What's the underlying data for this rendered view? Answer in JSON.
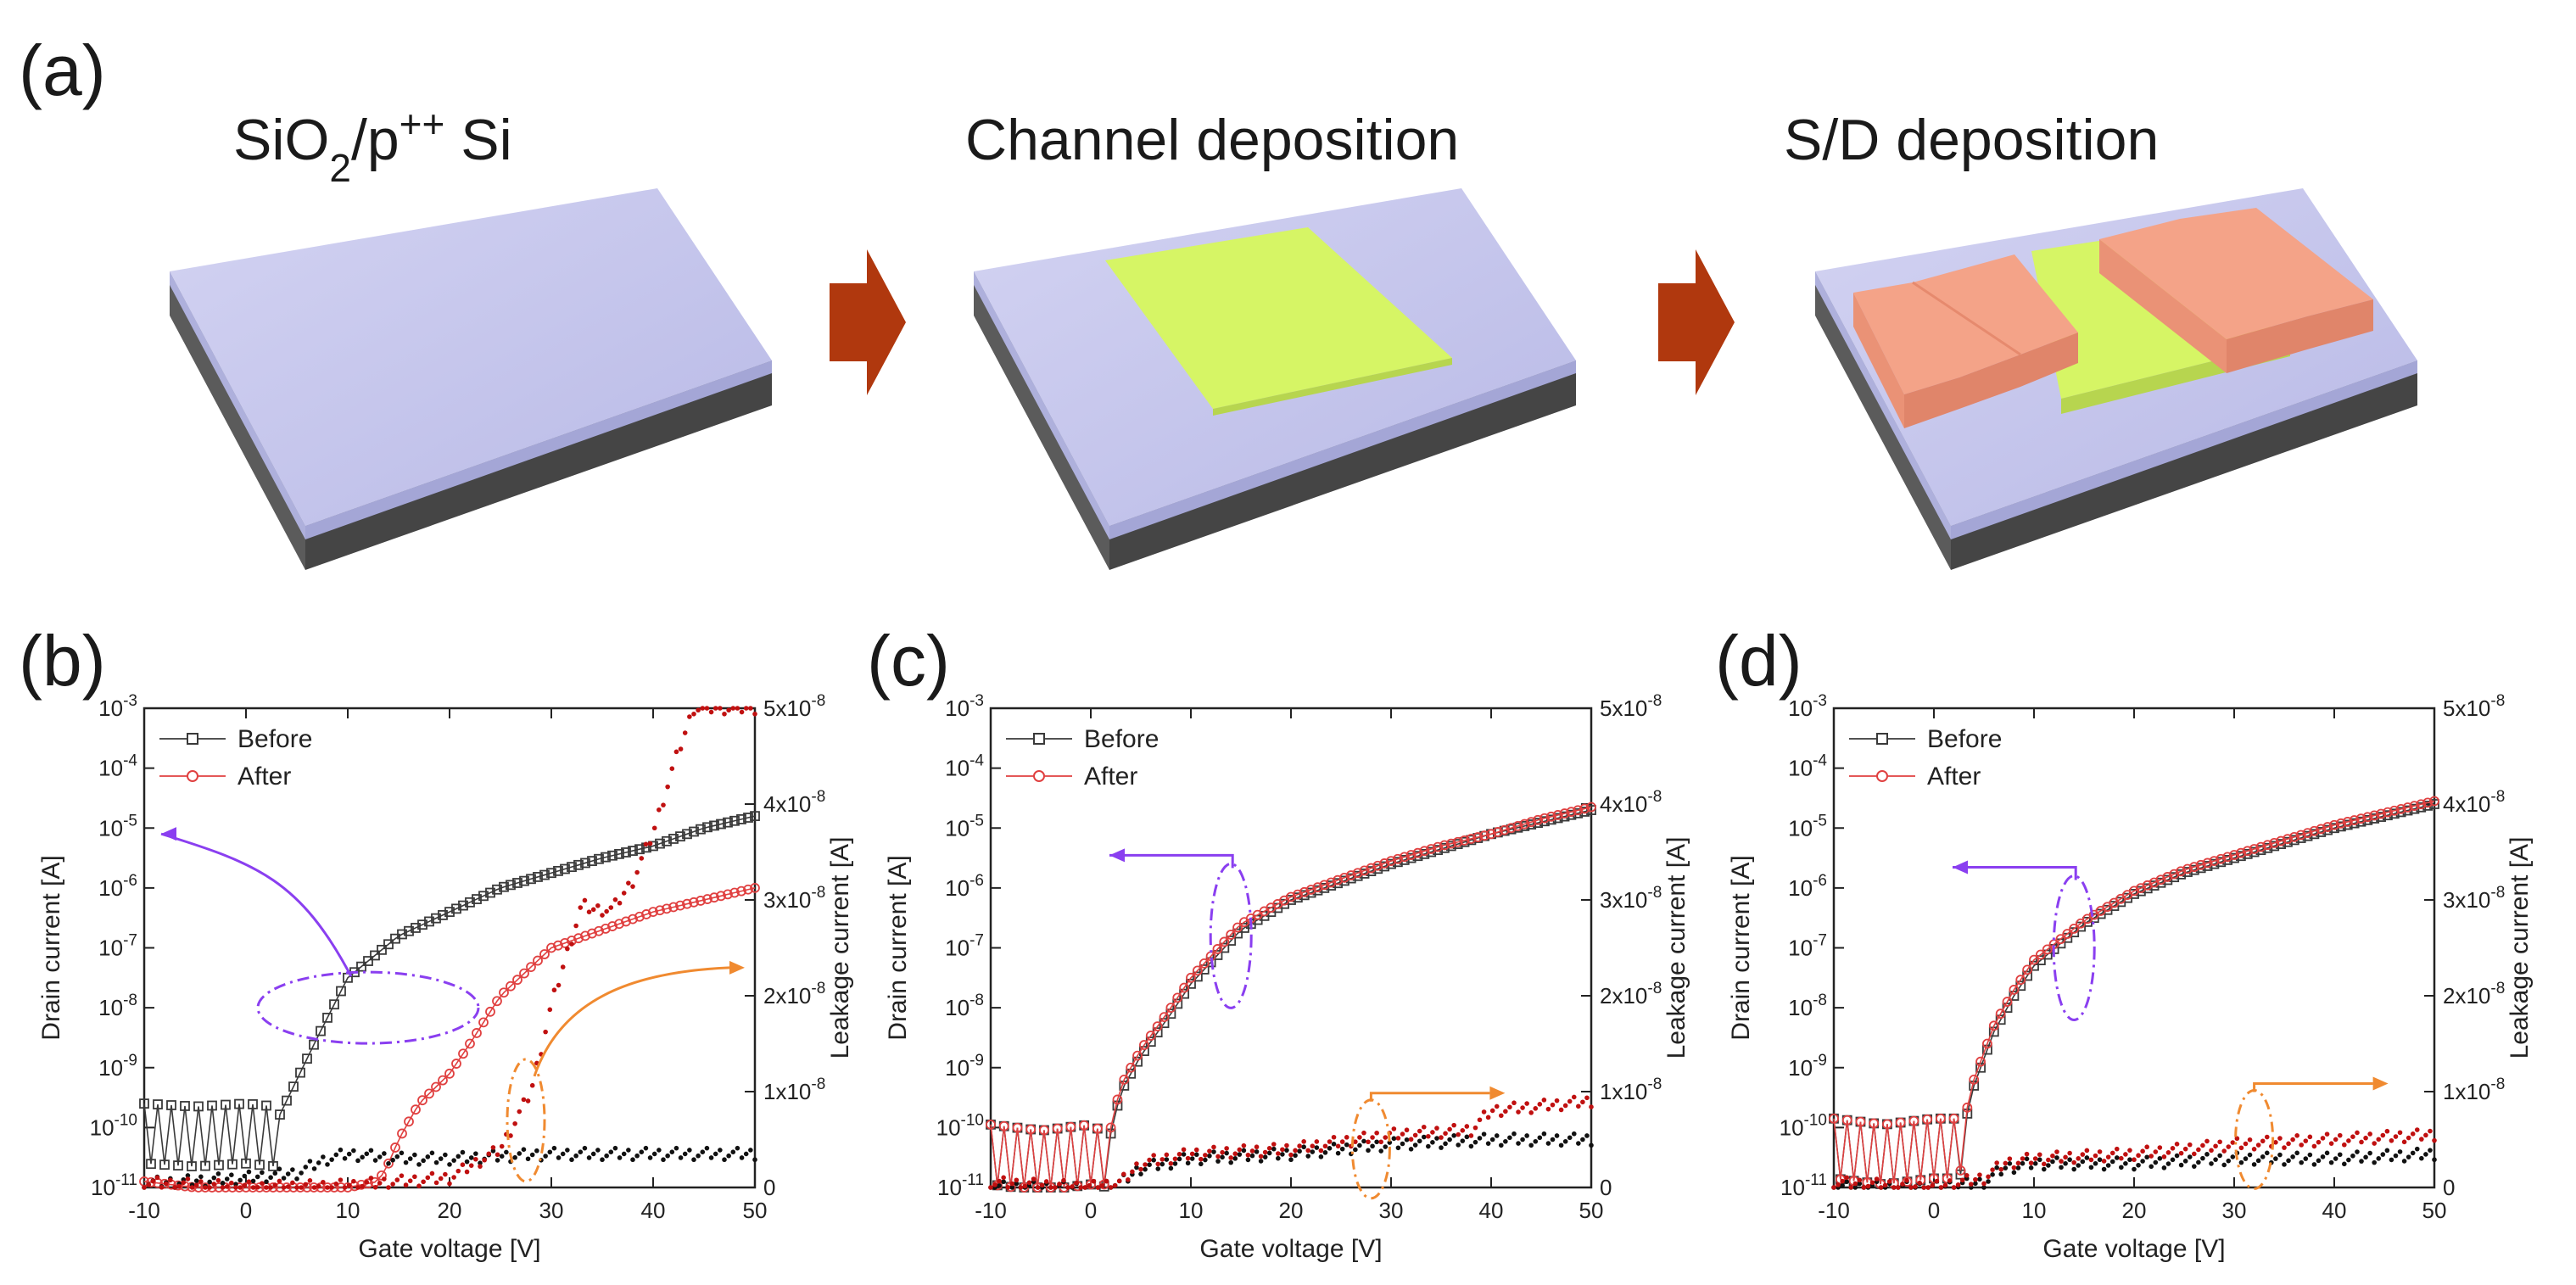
{
  "figure": {
    "panel_a": {
      "label": "(a)",
      "steps": [
        {
          "title_parts": [
            "SiO",
            "2",
            "/p",
            "++",
            " Si"
          ],
          "stage": "substrate"
        },
        {
          "title": "Channel deposition",
          "stage": "channel"
        },
        {
          "title": "S/D deposition",
          "stage": "source-drain"
        }
      ],
      "colors": {
        "oxide_top": "#c4c4ec",
        "oxide_side": "#aeb0dc",
        "silicon": "#5e5e5e",
        "silicon_dark": "#444444",
        "channel": "#d6f565",
        "electrode": "#f4a388",
        "arrow": "#b0380e"
      },
      "arrow_icon": "right-arrow-icon"
    },
    "colors": {
      "before": "#3a3a3a",
      "after": "#e04040",
      "leak_before": "#111111",
      "leak_after": "#c01010",
      "purple_annotation": "#8a3ff0",
      "orange_annotation": "#f08a30"
    }
  },
  "chart_data": [
    {
      "panel": "(b)",
      "type": "scatter",
      "title": "",
      "xlabel": "Gate voltage [V]",
      "ylabel": "Drain current [A]",
      "y2label": "Leakage current [A]",
      "xlim": [
        -10,
        50
      ],
      "ylim_log10": [
        -11,
        -3
      ],
      "y2lim": [
        0,
        5e-08
      ],
      "x_ticks": [
        "-10",
        "0",
        "10",
        "20",
        "30",
        "40",
        "50"
      ],
      "y_ticks_exp": [
        "-3",
        "-4",
        "-5",
        "-6",
        "-7",
        "-8",
        "-9",
        "-10",
        "-11"
      ],
      "y2_ticks": [
        "5x10",
        "4x10",
        "3x10",
        "2x10",
        "1x10",
        "0"
      ],
      "y2_tick_exp": "-8",
      "legend": [
        "Before",
        "After"
      ],
      "legend_position": "top-left",
      "series": [
        {
          "name": "Before",
          "axis": "left",
          "marker": "square",
          "x": [
            -10,
            -5,
            0,
            3,
            5,
            7,
            10,
            15,
            20,
            25,
            30,
            35,
            40,
            45,
            50
          ],
          "log10_y": [
            -9.85,
            -9.9,
            -9.85,
            -9.9,
            -9.2,
            -8.5,
            -7.5,
            -6.8,
            -6.4,
            -6.0,
            -5.75,
            -5.5,
            -5.3,
            -5.0,
            -4.8
          ]
        },
        {
          "name": "After",
          "axis": "left",
          "marker": "circle",
          "x": [
            -10,
            -5,
            0,
            5,
            10,
            13,
            14,
            15,
            17,
            20,
            22,
            25,
            30,
            35,
            40,
            45,
            50
          ],
          "log10_y": [
            -10.9,
            -11.0,
            -11.0,
            -11.0,
            -11.0,
            -10.9,
            -10.6,
            -10.2,
            -9.6,
            -9.1,
            -8.6,
            -7.8,
            -7.0,
            -6.7,
            -6.4,
            -6.2,
            -6.0
          ]
        },
        {
          "name": "Before leakage",
          "axis": "right",
          "marker": "dot",
          "x": [
            -8,
            0,
            5,
            8,
            10,
            15,
            20,
            30,
            40,
            50
          ],
          "y": [
            5e-10,
            1e-09,
            1.5e-09,
            3e-09,
            3.5e-09,
            3e-09,
            3e-09,
            3.5e-09,
            3.5e-09,
            3.5e-09
          ]
        },
        {
          "name": "After leakage",
          "axis": "right",
          "marker": "dot",
          "x": [
            -10,
            0,
            10,
            20,
            25,
            28,
            30,
            32,
            33,
            34,
            36,
            38,
            40,
            42,
            44
          ],
          "y": [
            5e-10,
            0.0,
            2e-10,
            1e-09,
            4e-09,
            1e-08,
            1.9e-08,
            2.6e-08,
            2.95e-08,
            2.9e-08,
            2.9e-08,
            3.2e-08,
            3.7e-08,
            4.4e-08,
            5e-08
          ]
        }
      ],
      "annotations": [
        {
          "type": "ellipse",
          "color": "purple",
          "at_x": 12,
          "at_log10_y": -8.0,
          "arrow_to": "left-axis"
        },
        {
          "type": "ellipse",
          "color": "orange",
          "at_x": 27.5,
          "at_y2": 7e-09,
          "arrow_to": "right-axis"
        }
      ]
    },
    {
      "panel": "(c)",
      "type": "scatter",
      "xlabel": "Gate voltage [V]",
      "ylabel": "Drain current [A]",
      "y2label": "Leakage current [A]",
      "xlim": [
        -10,
        50
      ],
      "ylim_log10": [
        -11,
        -3
      ],
      "y2lim": [
        0,
        5e-08
      ],
      "x_ticks": [
        "-10",
        "0",
        "10",
        "20",
        "30",
        "40",
        "50"
      ],
      "y_ticks_exp": [
        "-3",
        "-4",
        "-5",
        "-6",
        "-7",
        "-8",
        "-9",
        "-10",
        "-11"
      ],
      "y2_ticks": [
        "5x10",
        "4x10",
        "3x10",
        "2x10",
        "1x10",
        "0"
      ],
      "y2_tick_exp": "-8",
      "legend": [
        "Before",
        "After"
      ],
      "legend_position": "top-left",
      "series": [
        {
          "name": "Before",
          "axis": "left",
          "marker": "square",
          "x": [
            -10,
            -5,
            0,
            1,
            2,
            3,
            5,
            8,
            10,
            15,
            20,
            25,
            30,
            35,
            40,
            45,
            50
          ],
          "log10_y": [
            -10.2,
            -10.3,
            -10.2,
            -10.3,
            -10.1,
            -9.4,
            -8.8,
            -8.1,
            -7.6,
            -6.7,
            -6.2,
            -5.9,
            -5.6,
            -5.35,
            -5.1,
            -4.9,
            -4.7
          ]
        },
        {
          "name": "After",
          "axis": "left",
          "marker": "circle",
          "x": [
            -10,
            -5,
            0,
            1,
            2,
            3,
            5,
            8,
            10,
            15,
            20,
            25,
            30,
            35,
            40,
            45,
            50
          ],
          "log10_y": [
            -10.2,
            -10.3,
            -10.2,
            -10.3,
            -10.0,
            -9.3,
            -8.7,
            -8.0,
            -7.5,
            -6.6,
            -6.15,
            -5.85,
            -5.55,
            -5.3,
            -5.1,
            -4.85,
            -4.65
          ]
        },
        {
          "name": "Before leakage",
          "axis": "right",
          "marker": "dot",
          "x": [
            -10,
            0,
            3,
            5,
            10,
            20,
            30,
            40,
            50
          ],
          "y": [
            0.0,
            0.0,
            5e-10,
            2e-09,
            3e-09,
            3.5e-09,
            4.5e-09,
            5e-09,
            5e-09
          ]
        },
        {
          "name": "After leakage",
          "axis": "right",
          "marker": "dot",
          "x": [
            -10,
            0,
            3,
            5,
            10,
            20,
            30,
            38,
            40,
            45,
            50
          ],
          "y": [
            5e-10,
            0.0,
            5e-10,
            2.5e-09,
            3.5e-09,
            4e-09,
            5.5e-09,
            6e-09,
            8e-09,
            8.5e-09,
            9e-09
          ]
        }
      ],
      "annotations": [
        {
          "type": "ellipse",
          "color": "purple",
          "at_x": 14,
          "at_log10_y": -6.8,
          "arrow_to": "left-axis"
        },
        {
          "type": "ellipse",
          "color": "orange",
          "at_x": 28,
          "at_y2": 4e-09,
          "arrow_to": "right-axis"
        }
      ]
    },
    {
      "panel": "(d)",
      "type": "scatter",
      "xlabel": "Gate voltage [V]",
      "ylabel": "Drain current [A]",
      "y2label": "Leakage current [A]",
      "xlim": [
        -10,
        50
      ],
      "ylim_log10": [
        -11,
        -3
      ],
      "y2lim": [
        0,
        5e-08
      ],
      "x_ticks": [
        "-10",
        "0",
        "10",
        "20",
        "30",
        "40",
        "50"
      ],
      "y_ticks_exp": [
        "-3",
        "-4",
        "-5",
        "-6",
        "-7",
        "-8",
        "-9",
        "-10",
        "-11"
      ],
      "y2_ticks": [
        "5x10",
        "4x10",
        "3x10",
        "2x10",
        "1x10",
        "0"
      ],
      "y2_tick_exp": "-8",
      "legend": [
        "Before",
        "After"
      ],
      "legend_position": "top-left",
      "series": [
        {
          "name": "Before",
          "axis": "left",
          "marker": "square",
          "x": [
            -10,
            -5,
            0,
            2,
            3,
            4,
            6,
            8,
            10,
            15,
            20,
            25,
            30,
            35,
            40,
            45,
            50
          ],
          "log10_y": [
            -10.1,
            -10.2,
            -10.1,
            -10.1,
            -10.0,
            -9.3,
            -8.4,
            -7.8,
            -7.3,
            -6.6,
            -6.1,
            -5.75,
            -5.5,
            -5.25,
            -5.0,
            -4.8,
            -4.6
          ]
        },
        {
          "name": "After",
          "axis": "left",
          "marker": "circle",
          "x": [
            -10,
            -5,
            0,
            2,
            3,
            4,
            6,
            8,
            10,
            15,
            20,
            25,
            30,
            35,
            40,
            45,
            50
          ],
          "log10_y": [
            -10.1,
            -10.2,
            -10.1,
            -10.1,
            -9.9,
            -9.2,
            -8.3,
            -7.7,
            -7.2,
            -6.55,
            -6.05,
            -5.7,
            -5.45,
            -5.2,
            -4.95,
            -4.75,
            -4.55
          ]
        },
        {
          "name": "Before leakage",
          "axis": "right",
          "marker": "dot",
          "x": [
            -10,
            0,
            5,
            7,
            10,
            20,
            30,
            40,
            50
          ],
          "y": [
            0.0,
            0.0,
            5e-10,
            2e-09,
            2.5e-09,
            2.5e-09,
            3e-09,
            3e-09,
            3.5e-09
          ]
        },
        {
          "name": "After leakage",
          "axis": "right",
          "marker": "dot",
          "x": [
            -10,
            0,
            5,
            7,
            10,
            20,
            30,
            40,
            50
          ],
          "y": [
            5e-10,
            0.0,
            1e-09,
            2.5e-09,
            3e-09,
            3.5e-09,
            4.5e-09,
            5e-09,
            5.5e-09
          ]
        }
      ],
      "annotations": [
        {
          "type": "ellipse",
          "color": "purple",
          "at_x": 14,
          "at_log10_y": -7.0,
          "arrow_to": "left-axis"
        },
        {
          "type": "ellipse",
          "color": "orange",
          "at_x": 32,
          "at_y2": 5e-09,
          "arrow_to": "right-axis"
        }
      ]
    }
  ]
}
